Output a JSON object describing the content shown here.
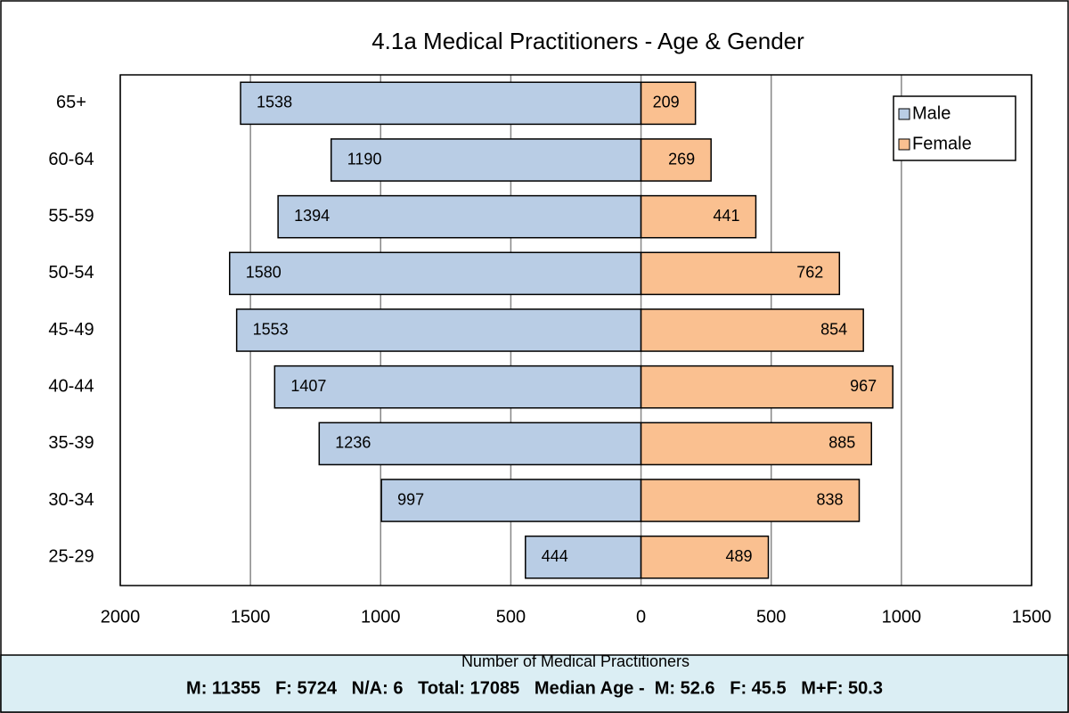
{
  "chart_data": {
    "type": "pyramid",
    "title": "4.1a Medical Practitioners - Age & Gender",
    "x_label": "Number of Medical Practitioners",
    "categories": [
      "65+",
      "60-64",
      "55-59",
      "50-54",
      "45-49",
      "40-44",
      "35-39",
      "30-34",
      "25-29"
    ],
    "series": [
      {
        "name": "Male",
        "color": "#b9cde5",
        "values": [
          -1538,
          -1190,
          -1394,
          -1580,
          -1553,
          -1407,
          -1236,
          -997,
          -444
        ],
        "value_labels": [
          "1538",
          "1190",
          "1394",
          "1580",
          "1553",
          "1407",
          "1236",
          "997",
          "444"
        ]
      },
      {
        "name": "Female",
        "color": "#fac090",
        "values": [
          209,
          269,
          441,
          762,
          854,
          967,
          885,
          838,
          489
        ]
      }
    ],
    "xlim": [
      -2000,
      1500
    ],
    "xticks": [
      {
        "value": -2000,
        "label": "2000"
      },
      {
        "value": -1500,
        "label": "1500"
      },
      {
        "value": -1000,
        "label": "1000"
      },
      {
        "value": -500,
        "label": "500"
      },
      0,
      500,
      1000,
      1500
    ],
    "grid": true,
    "legend": "top-right",
    "footer": "M: 11355   F: 5724   N/A: 6   Total: 17085   Median Age -  M: 52.6   F: 45.5   M+F: 50.3"
  }
}
